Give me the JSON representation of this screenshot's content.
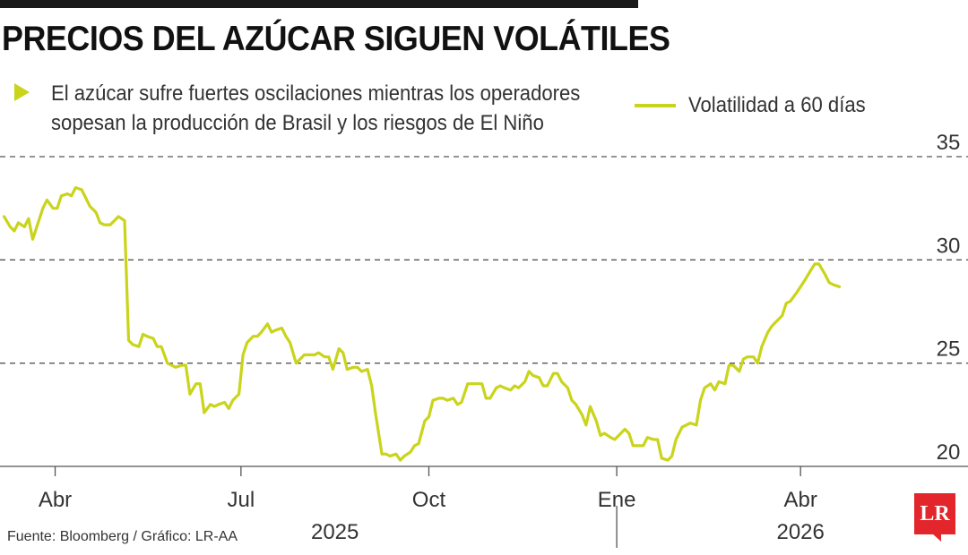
{
  "header": {
    "title": "PRECIOS DEL AZÚCAR SIGUEN VOLÁTILES",
    "subtitle_line1": "El azúcar sufre fuertes oscilaciones mientras los operadores",
    "subtitle_line2": "sopesan la producción de Brasil y los riesgos de El Niño"
  },
  "footer": {
    "source": "Fuente: Bloomberg / Gráfico: LR-AA",
    "logo_text": "LR"
  },
  "colors": {
    "series": "#c9d41a",
    "grid": "#555555",
    "logo": "#e3262b"
  },
  "chart_data": {
    "type": "line",
    "title": "PRECIOS DEL AZÚCAR SIGUEN VOLÁTILES",
    "legend_position": "top-right",
    "grid": "horizontal-dashed",
    "ylim": [
      20,
      35
    ],
    "y_ticks": [
      20,
      25,
      30,
      35
    ],
    "x_ticks": [
      {
        "label": "Abr",
        "date": "2025-04-01"
      },
      {
        "label": "Jul",
        "date": "2025-07-01"
      },
      {
        "label": "Oct",
        "date": "2025-10-01"
      },
      {
        "label": "Ene",
        "date": "2026-01-01"
      },
      {
        "label": "Abr",
        "date": "2026-04-01"
      }
    ],
    "years": [
      {
        "label": "2025",
        "date": "2025-08-16"
      },
      {
        "label": "2026",
        "date": "2026-04-01"
      }
    ],
    "x_range": [
      "2025-03-05",
      "2026-06-22"
    ],
    "series": [
      {
        "name": "Volatilidad a 60 días",
        "points": [
          [
            "2025-03-07",
            32.1
          ],
          [
            "2025-03-10",
            31.6
          ],
          [
            "2025-03-12",
            31.4
          ],
          [
            "2025-03-14",
            31.8
          ],
          [
            "2025-03-17",
            31.6
          ],
          [
            "2025-03-19",
            32.0
          ],
          [
            "2025-03-21",
            31.0
          ],
          [
            "2025-03-24",
            31.9
          ],
          [
            "2025-03-26",
            32.5
          ],
          [
            "2025-03-28",
            32.9
          ],
          [
            "2025-03-31",
            32.5
          ],
          [
            "2025-04-02",
            32.5
          ],
          [
            "2025-04-04",
            33.1
          ],
          [
            "2025-04-07",
            33.2
          ],
          [
            "2025-04-09",
            33.1
          ],
          [
            "2025-04-11",
            33.5
          ],
          [
            "2025-04-14",
            33.4
          ],
          [
            "2025-04-16",
            33.0
          ],
          [
            "2025-04-18",
            32.6
          ],
          [
            "2025-04-21",
            32.3
          ],
          [
            "2025-04-23",
            31.8
          ],
          [
            "2025-04-25",
            31.7
          ],
          [
            "2025-04-28",
            31.7
          ],
          [
            "2025-04-30",
            31.9
          ],
          [
            "2025-05-02",
            32.1
          ],
          [
            "2025-05-05",
            31.9
          ],
          [
            "2025-05-07",
            26.1
          ],
          [
            "2025-05-09",
            25.9
          ],
          [
            "2025-05-12",
            25.8
          ],
          [
            "2025-05-14",
            26.4
          ],
          [
            "2025-05-16",
            26.3
          ],
          [
            "2025-05-19",
            26.2
          ],
          [
            "2025-05-21",
            25.8
          ],
          [
            "2025-05-23",
            25.8
          ],
          [
            "2025-05-26",
            25.0
          ],
          [
            "2025-05-28",
            24.9
          ],
          [
            "2025-05-30",
            24.8
          ],
          [
            "2025-06-02",
            24.9
          ],
          [
            "2025-06-04",
            24.9
          ],
          [
            "2025-06-06",
            23.5
          ],
          [
            "2025-06-09",
            24.0
          ],
          [
            "2025-06-11",
            24.0
          ],
          [
            "2025-06-13",
            22.6
          ],
          [
            "2025-06-16",
            23.0
          ],
          [
            "2025-06-18",
            22.9
          ],
          [
            "2025-06-20",
            23.0
          ],
          [
            "2025-06-23",
            23.1
          ],
          [
            "2025-06-25",
            22.8
          ],
          [
            "2025-06-27",
            23.2
          ],
          [
            "2025-06-30",
            23.5
          ],
          [
            "2025-07-02",
            25.4
          ],
          [
            "2025-07-04",
            26.0
          ],
          [
            "2025-07-07",
            26.3
          ],
          [
            "2025-07-09",
            26.3
          ],
          [
            "2025-07-11",
            26.5
          ],
          [
            "2025-07-14",
            26.9
          ],
          [
            "2025-07-16",
            26.5
          ],
          [
            "2025-07-18",
            26.6
          ],
          [
            "2025-07-21",
            26.7
          ],
          [
            "2025-07-23",
            26.3
          ],
          [
            "2025-07-25",
            26.0
          ],
          [
            "2025-07-28",
            25.0
          ],
          [
            "2025-07-30",
            25.2
          ],
          [
            "2025-08-01",
            25.4
          ],
          [
            "2025-08-04",
            25.4
          ],
          [
            "2025-08-06",
            25.4
          ],
          [
            "2025-08-08",
            25.5
          ],
          [
            "2025-08-11",
            25.3
          ],
          [
            "2025-08-13",
            25.3
          ],
          [
            "2025-08-15",
            24.7
          ],
          [
            "2025-08-18",
            25.7
          ],
          [
            "2025-08-20",
            25.5
          ],
          [
            "2025-08-22",
            24.7
          ],
          [
            "2025-08-25",
            24.8
          ],
          [
            "2025-08-27",
            24.8
          ],
          [
            "2025-08-29",
            24.6
          ],
          [
            "2025-09-01",
            24.7
          ],
          [
            "2025-09-03",
            23.9
          ],
          [
            "2025-09-05",
            22.5
          ],
          [
            "2025-09-08",
            20.6
          ],
          [
            "2025-09-10",
            20.6
          ],
          [
            "2025-09-12",
            20.5
          ],
          [
            "2025-09-15",
            20.6
          ],
          [
            "2025-09-17",
            20.3
          ],
          [
            "2025-09-19",
            20.5
          ],
          [
            "2025-09-22",
            20.7
          ],
          [
            "2025-09-24",
            21.0
          ],
          [
            "2025-09-26",
            21.1
          ],
          [
            "2025-09-29",
            22.2
          ],
          [
            "2025-10-01",
            22.4
          ],
          [
            "2025-10-03",
            23.2
          ],
          [
            "2025-10-06",
            23.3
          ],
          [
            "2025-10-08",
            23.3
          ],
          [
            "2025-10-10",
            23.2
          ],
          [
            "2025-10-13",
            23.3
          ],
          [
            "2025-10-15",
            23.0
          ],
          [
            "2025-10-17",
            23.1
          ],
          [
            "2025-10-20",
            24.0
          ],
          [
            "2025-10-22",
            24.0
          ],
          [
            "2025-10-24",
            24.0
          ],
          [
            "2025-10-27",
            24.0
          ],
          [
            "2025-10-29",
            23.3
          ],
          [
            "2025-10-31",
            23.3
          ],
          [
            "2025-11-03",
            23.8
          ],
          [
            "2025-11-05",
            23.9
          ],
          [
            "2025-11-07",
            23.8
          ],
          [
            "2025-11-10",
            23.7
          ],
          [
            "2025-11-12",
            23.9
          ],
          [
            "2025-11-14",
            23.8
          ],
          [
            "2025-11-17",
            24.1
          ],
          [
            "2025-11-19",
            24.6
          ],
          [
            "2025-11-21",
            24.4
          ],
          [
            "2025-11-24",
            24.3
          ],
          [
            "2025-11-26",
            23.9
          ],
          [
            "2025-11-28",
            23.9
          ],
          [
            "2025-12-01",
            24.5
          ],
          [
            "2025-12-03",
            24.5
          ],
          [
            "2025-12-05",
            24.1
          ],
          [
            "2025-12-08",
            23.8
          ],
          [
            "2025-12-10",
            23.2
          ],
          [
            "2025-12-12",
            23.0
          ],
          [
            "2025-12-15",
            22.5
          ],
          [
            "2025-12-17",
            22.0
          ],
          [
            "2025-12-19",
            22.9
          ],
          [
            "2025-12-22",
            22.2
          ],
          [
            "2025-12-24",
            21.5
          ],
          [
            "2025-12-26",
            21.6
          ],
          [
            "2025-12-29",
            21.4
          ],
          [
            "2025-12-31",
            21.3
          ],
          [
            "2026-01-02",
            21.5
          ],
          [
            "2026-01-05",
            21.8
          ],
          [
            "2026-01-07",
            21.6
          ],
          [
            "2026-01-09",
            21.0
          ],
          [
            "2026-01-12",
            21.0
          ],
          [
            "2026-01-14",
            21.0
          ],
          [
            "2026-01-16",
            21.4
          ],
          [
            "2026-01-19",
            21.3
          ],
          [
            "2026-01-21",
            21.3
          ],
          [
            "2026-01-23",
            20.4
          ],
          [
            "2026-01-26",
            20.3
          ],
          [
            "2026-01-28",
            20.5
          ],
          [
            "2026-01-30",
            21.3
          ],
          [
            "2026-02-02",
            21.9
          ],
          [
            "2026-02-04",
            22.0
          ],
          [
            "2026-02-06",
            22.1
          ],
          [
            "2026-02-09",
            22.0
          ],
          [
            "2026-02-11",
            23.2
          ],
          [
            "2026-02-13",
            23.8
          ],
          [
            "2026-02-16",
            24.0
          ],
          [
            "2026-02-18",
            23.7
          ],
          [
            "2026-02-20",
            24.1
          ],
          [
            "2026-02-23",
            24.0
          ],
          [
            "2026-02-25",
            24.9
          ],
          [
            "2026-02-27",
            24.9
          ],
          [
            "2026-03-02",
            24.6
          ],
          [
            "2026-03-04",
            25.2
          ],
          [
            "2026-03-06",
            25.3
          ],
          [
            "2026-03-09",
            25.3
          ],
          [
            "2026-03-11",
            25.0
          ],
          [
            "2026-03-13",
            25.8
          ],
          [
            "2026-03-16",
            26.5
          ],
          [
            "2026-03-18",
            26.8
          ],
          [
            "2026-03-20",
            27.0
          ],
          [
            "2026-03-23",
            27.3
          ],
          [
            "2026-03-25",
            27.9
          ],
          [
            "2026-03-27",
            28.0
          ],
          [
            "2026-03-30",
            28.4
          ],
          [
            "2026-04-01",
            28.7
          ],
          [
            "2026-04-03",
            29.0
          ],
          [
            "2026-04-06",
            29.5
          ],
          [
            "2026-04-08",
            29.8
          ],
          [
            "2026-04-10",
            29.8
          ],
          [
            "2026-04-13",
            29.3
          ],
          [
            "2026-04-15",
            28.9
          ],
          [
            "2026-04-17",
            28.8
          ],
          [
            "2026-04-20",
            28.7
          ]
        ]
      }
    ]
  }
}
